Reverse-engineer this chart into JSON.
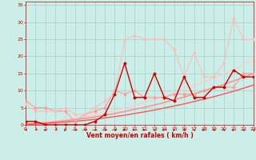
{
  "title": "",
  "xlabel": "Vent moyen/en rafales ( km/h )",
  "xlim": [
    0,
    23
  ],
  "ylim": [
    0,
    36
  ],
  "yticks": [
    0,
    5,
    10,
    15,
    20,
    25,
    30,
    35
  ],
  "xticks": [
    0,
    1,
    2,
    3,
    4,
    5,
    6,
    7,
    8,
    9,
    10,
    11,
    12,
    13,
    14,
    15,
    16,
    17,
    18,
    19,
    20,
    21,
    22,
    23
  ],
  "bg_color": "#cceee8",
  "grid_color": "#aad4cc",
  "series": [
    {
      "x": [
        0,
        1,
        2,
        3,
        4,
        5,
        6,
        7,
        8,
        9,
        10,
        11,
        12,
        13,
        14,
        15,
        16,
        17,
        18,
        19,
        20,
        21,
        22,
        23
      ],
      "y": [
        7,
        5,
        5,
        4,
        4,
        1,
        3,
        4,
        5,
        10,
        9,
        10,
        8,
        8,
        8,
        9,
        9,
        9,
        10,
        11,
        11,
        11,
        15,
        15
      ],
      "color": "#ff9999",
      "lw": 0.8,
      "marker": "D",
      "ms": 1.5
    },
    {
      "x": [
        0,
        1,
        2,
        3,
        4,
        5,
        6,
        7,
        8,
        9,
        10,
        11,
        12,
        13,
        14,
        15,
        16,
        17,
        18,
        19,
        20,
        21,
        22,
        23
      ],
      "y": [
        6,
        4,
        4,
        4,
        5,
        3,
        3,
        5,
        7,
        9,
        25,
        26,
        25,
        25,
        25,
        22,
        14,
        21,
        14,
        14,
        18,
        31,
        25,
        25
      ],
      "color": "#ffbbbb",
      "lw": 0.8,
      "marker": "D",
      "ms": 1.5
    },
    {
      "x": [
        0,
        1,
        2,
        3,
        4,
        5,
        6,
        7,
        8,
        9,
        10,
        11,
        12,
        13,
        14,
        15,
        16,
        17,
        18,
        19,
        20,
        21,
        22,
        23
      ],
      "y": [
        1,
        1,
        0,
        0,
        0,
        0,
        0,
        1,
        3,
        9,
        18,
        8,
        8,
        15,
        8,
        7,
        14,
        8,
        8,
        11,
        11,
        16,
        14,
        14
      ],
      "color": "#cc0000",
      "lw": 1.0,
      "marker": "D",
      "ms": 1.5
    },
    {
      "x": [
        0,
        1,
        2,
        3,
        4,
        5,
        6,
        7,
        8,
        9,
        10,
        11,
        12,
        13,
        14,
        15,
        16,
        17,
        18,
        19,
        20,
        21,
        22,
        23
      ],
      "y": [
        0.3,
        0.5,
        0.8,
        1.1,
        1.5,
        1.9,
        2.4,
        2.9,
        3.5,
        4.2,
        4.9,
        5.7,
        6.5,
        7.4,
        8.3,
        9.3,
        10.3,
        11.4,
        12.5,
        13.7,
        14.9,
        16.2,
        17.5,
        18.9
      ],
      "color": "#ffcccc",
      "lw": 1.0,
      "marker": null,
      "ms": 0
    },
    {
      "x": [
        0,
        1,
        2,
        3,
        4,
        5,
        6,
        7,
        8,
        9,
        10,
        11,
        12,
        13,
        14,
        15,
        16,
        17,
        18,
        19,
        20,
        21,
        22,
        23
      ],
      "y": [
        0.2,
        0.4,
        0.6,
        0.9,
        1.2,
        1.5,
        1.9,
        2.3,
        2.8,
        3.3,
        3.9,
        4.5,
        5.1,
        5.8,
        6.5,
        7.3,
        8.1,
        9.0,
        9.9,
        10.8,
        11.8,
        12.8,
        13.9,
        15.0
      ],
      "color": "#ff8888",
      "lw": 1.0,
      "marker": null,
      "ms": 0
    },
    {
      "x": [
        0,
        1,
        2,
        3,
        4,
        5,
        6,
        7,
        8,
        9,
        10,
        11,
        12,
        13,
        14,
        15,
        16,
        17,
        18,
        19,
        20,
        21,
        22,
        23
      ],
      "y": [
        0.1,
        0.2,
        0.4,
        0.6,
        0.8,
        1.0,
        1.3,
        1.6,
        2.0,
        2.4,
        2.8,
        3.3,
        3.8,
        4.3,
        4.9,
        5.5,
        6.1,
        6.8,
        7.5,
        8.2,
        9.0,
        9.8,
        10.7,
        11.6
      ],
      "color": "#ff5555",
      "lw": 1.0,
      "marker": null,
      "ms": 0
    }
  ],
  "wind_arrows": {
    "x": [
      0,
      1,
      2,
      3,
      4,
      5,
      6,
      7,
      8,
      9,
      10,
      11,
      12,
      13,
      14,
      15,
      16,
      17,
      18,
      19,
      20,
      21,
      22,
      23
    ],
    "angles": [
      225,
      210,
      240,
      210,
      195,
      90,
      90,
      90,
      90,
      90,
      270,
      270,
      270,
      315,
      270,
      45,
      315,
      315,
      270,
      315,
      315,
      45,
      315,
      315
    ]
  }
}
